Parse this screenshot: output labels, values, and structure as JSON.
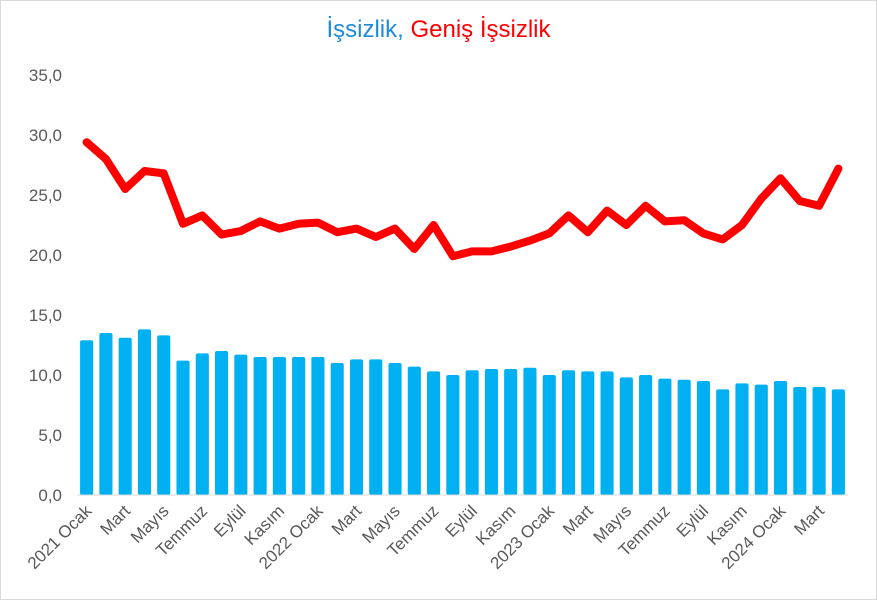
{
  "chart_data": {
    "type": "bar",
    "title_parts": [
      {
        "text": "İşsizlik",
        "color": "#1f8bd6"
      },
      {
        "text": ", ",
        "color": "#1f8bd6"
      },
      {
        "text": "Geniş İşsizlik",
        "color": "#ff0000"
      }
    ],
    "ylim": [
      0,
      35
    ],
    "yticks": [
      "0,0",
      "5,0",
      "10,0",
      "15,0",
      "20,0",
      "25,0",
      "30,0",
      "35,0"
    ],
    "ytick_values": [
      0,
      5,
      10,
      15,
      20,
      25,
      30,
      35
    ],
    "xtick_labels": [
      {
        "index": 0,
        "label": "2021 Ocak"
      },
      {
        "index": 2,
        "label": "Mart"
      },
      {
        "index": 4,
        "label": "Mayıs"
      },
      {
        "index": 6,
        "label": "Temmuz"
      },
      {
        "index": 8,
        "label": "Eylül"
      },
      {
        "index": 10,
        "label": "Kasım"
      },
      {
        "index": 12,
        "label": "2022 Ocak"
      },
      {
        "index": 14,
        "label": "Mart"
      },
      {
        "index": 16,
        "label": "Mayıs"
      },
      {
        "index": 18,
        "label": "Temmuz"
      },
      {
        "index": 20,
        "label": "Eylül"
      },
      {
        "index": 22,
        "label": "Kasım"
      },
      {
        "index": 24,
        "label": "2023 Ocak"
      },
      {
        "index": 26,
        "label": "Mart"
      },
      {
        "index": 28,
        "label": "Mayıs"
      },
      {
        "index": 30,
        "label": "Temmuz"
      },
      {
        "index": 32,
        "label": "Eylül"
      },
      {
        "index": 34,
        "label": "Kasım"
      },
      {
        "index": 36,
        "label": "2024 Ocak"
      },
      {
        "index": 38,
        "label": "Mart"
      }
    ],
    "grid": false,
    "series": [
      {
        "kind": "bar",
        "color": "#00b0f0",
        "values": [
          12.9,
          13.5,
          13.1,
          13.8,
          13.3,
          11.2,
          11.8,
          12.0,
          11.7,
          11.5,
          11.5,
          11.5,
          11.5,
          11.0,
          11.3,
          11.3,
          11.0,
          10.7,
          10.3,
          10.0,
          10.4,
          10.5,
          10.5,
          10.6,
          10.0,
          10.4,
          10.3,
          10.3,
          9.8,
          10.0,
          9.7,
          9.6,
          9.5,
          8.8,
          9.3,
          9.2,
          9.5,
          9.0,
          9.0,
          8.8
        ]
      },
      {
        "kind": "line",
        "color": "#ff0000",
        "values": [
          29.4,
          28.0,
          25.5,
          27.0,
          26.8,
          22.6,
          23.3,
          21.7,
          22.0,
          22.8,
          22.2,
          22.6,
          22.7,
          21.9,
          22.2,
          21.5,
          22.2,
          20.5,
          22.5,
          19.9,
          20.3,
          20.3,
          20.7,
          21.2,
          21.8,
          23.3,
          21.9,
          23.7,
          22.5,
          24.1,
          22.8,
          22.9,
          21.8,
          21.3,
          22.5,
          24.7,
          26.4,
          24.5,
          24.1,
          27.2
        ]
      }
    ]
  }
}
